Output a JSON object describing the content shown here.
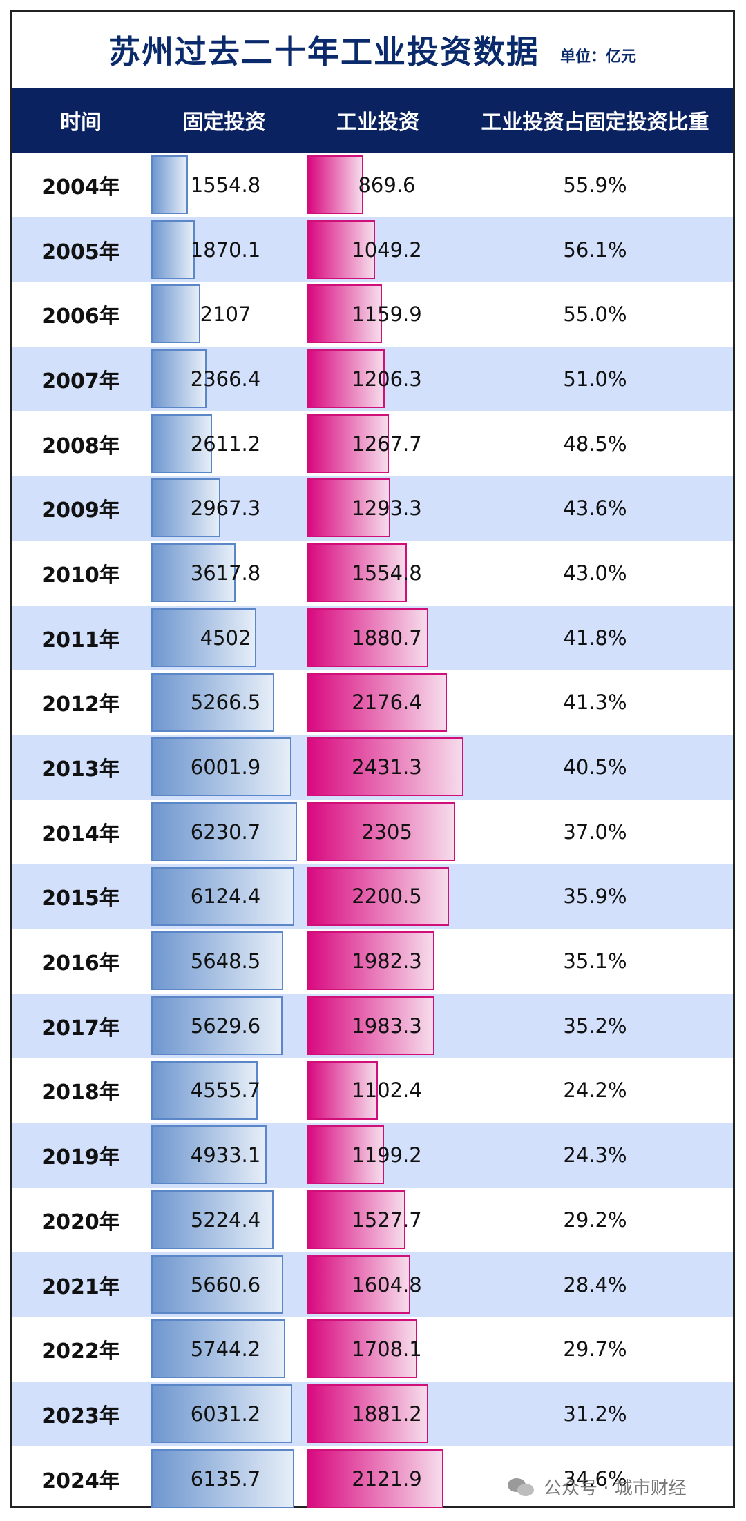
{
  "title": "苏州过去二十年工业投资数据",
  "unit": "单位：亿元",
  "headers": {
    "year": "时间",
    "fixed": "固定投资",
    "industrial": "工业投资",
    "ratio": "工业投资占固定投资比重"
  },
  "watermark": {
    "text": "公众号 · 城市财经",
    "icon": "wechat-icon"
  },
  "colors": {
    "title": "#0a2a6b",
    "header_bg": "#0b2260",
    "alt_row": "#d3e0fb",
    "fixed_bar": "#6f97cf",
    "industrial_bar": "#d90a80"
  },
  "chart_data": {
    "type": "table",
    "title": "苏州过去二十年工业投资数据",
    "unit": "单位：亿元",
    "categories": [
      "2004年",
      "2005年",
      "2006年",
      "2007年",
      "2008年",
      "2009年",
      "2010年",
      "2011年",
      "2012年",
      "2013年",
      "2014年",
      "2015年",
      "2016年",
      "2017年",
      "2018年",
      "2019年",
      "2020年",
      "2021年",
      "2022年",
      "2023年",
      "2024年"
    ],
    "bar_max": 6300,
    "series": [
      {
        "name": "固定投资",
        "values": [
          1554.8,
          1870.1,
          2107,
          2366.4,
          2611.2,
          2967.3,
          3617.8,
          4502,
          5266.5,
          6001.9,
          6230.7,
          6124.4,
          5648.5,
          5629.6,
          4555.7,
          4933.1,
          5224.4,
          5660.6,
          5744.2,
          6031.2,
          6135.7
        ]
      },
      {
        "name": "工业投资",
        "values": [
          869.6,
          1049.2,
          1159.9,
          1206.3,
          1267.7,
          1293.3,
          1554.8,
          1880.7,
          2176.4,
          2431.3,
          2305,
          2200.5,
          1982.3,
          1983.3,
          1102.4,
          1199.2,
          1527.7,
          1604.8,
          1708.1,
          1881.2,
          2121.9
        ]
      },
      {
        "name": "工业投资占固定投资比重",
        "values": [
          "55.9%",
          "56.1%",
          "55.0%",
          "51.0%",
          "48.5%",
          "43.6%",
          "43.0%",
          "41.8%",
          "41.3%",
          "40.5%",
          "37.0%",
          "35.9%",
          "35.1%",
          "35.2%",
          "24.2%",
          "24.3%",
          "29.2%",
          "28.4%",
          "29.7%",
          "31.2%",
          "34.6%"
        ]
      }
    ]
  }
}
